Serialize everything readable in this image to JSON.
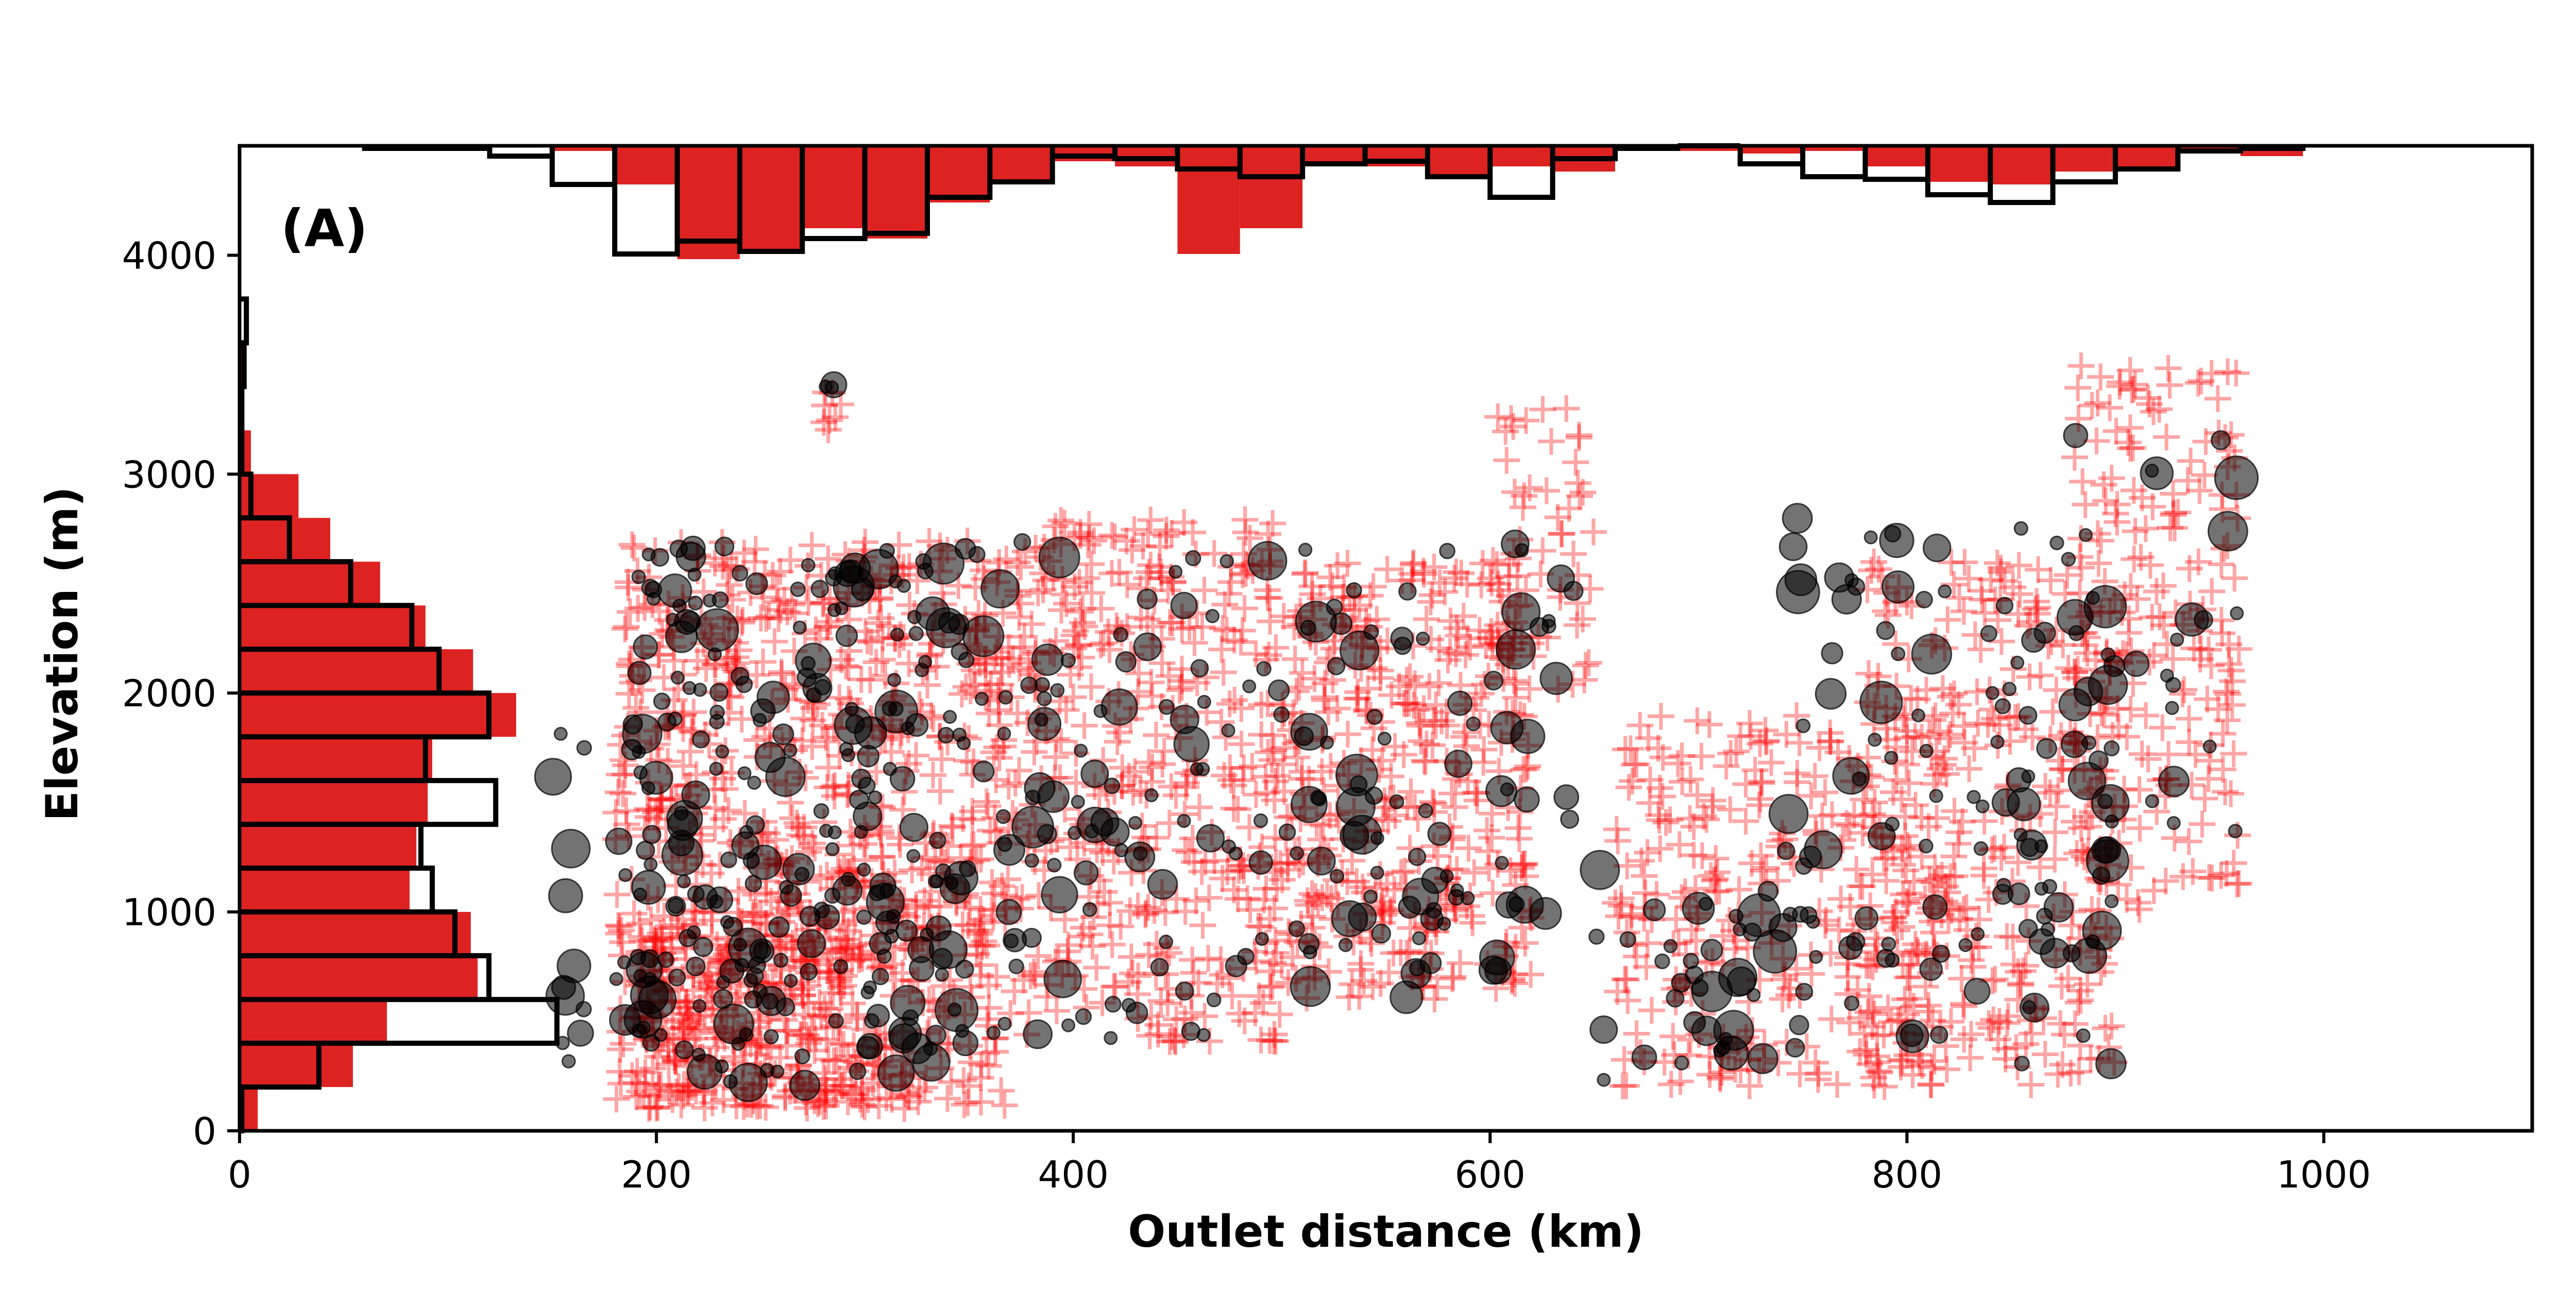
{
  "chart_data": {
    "type": "scatter",
    "panel_label": "(A)",
    "title": "",
    "xlabel": "Outlet distance (km)",
    "ylabel": "Elevation (m)",
    "xlim": [
      0,
      1100
    ],
    "ylim": [
      0,
      4500
    ],
    "x_ticks": [
      0,
      200,
      400,
      600,
      800,
      1000
    ],
    "y_ticks": [
      0,
      1000,
      2000,
      3000,
      4000
    ],
    "grid": false,
    "legend": "none",
    "colors": {
      "red_points": "#ff0000",
      "black_points": "#000000",
      "red_hist": "#dd2222",
      "black_hist_outline": "#000000"
    },
    "series": [
      {
        "marker": "plus",
        "color": "#ff0000",
        "opacity": 0.35,
        "clusters": [
          {
            "x_range": [
              180,
              370
            ],
            "y_range": [
              100,
              2700
            ],
            "count": 900
          },
          {
            "x_range": [
              190,
              300
            ],
            "y_range": [
              100,
              1000
            ],
            "count": 250
          },
          {
            "x_range": [
              370,
              500
            ],
            "y_range": [
              400,
              2800
            ],
            "count": 450
          },
          {
            "x_range": [
              500,
              620
            ],
            "y_range": [
              600,
              2600
            ],
            "count": 420
          },
          {
            "x_range": [
              600,
              650
            ],
            "y_range": [
              2000,
              3300
            ],
            "count": 60
          },
          {
            "x_range": [
              660,
              820
            ],
            "y_range": [
              200,
              1900
            ],
            "count": 330
          },
          {
            "x_range": [
              780,
              900
            ],
            "y_range": [
              200,
              2600
            ],
            "count": 330
          },
          {
            "x_range": [
              880,
              960
            ],
            "y_range": [
              1000,
              3500
            ],
            "count": 220
          },
          {
            "x_range": [
              280,
              290
            ],
            "y_range": [
              3200,
              3400
            ],
            "count": 8
          }
        ]
      },
      {
        "marker": "circle",
        "color": "#000000",
        "opacity": 0.55,
        "clusters": [
          {
            "x_range": [
              150,
              200
            ],
            "y_range": [
              300,
              1900
            ],
            "count": 25
          },
          {
            "x_range": [
              190,
              350
            ],
            "y_range": [
              200,
              2700
            ],
            "count": 260
          },
          {
            "x_range": [
              350,
              480
            ],
            "y_range": [
              400,
              2700
            ],
            "count": 90
          },
          {
            "x_range": [
              480,
              640
            ],
            "y_range": [
              600,
              2700
            ],
            "count": 100
          },
          {
            "x_range": [
              650,
              760
            ],
            "y_range": [
              200,
              1300
            ],
            "count": 45
          },
          {
            "x_range": [
              740,
              900
            ],
            "y_range": [
              300,
              2800
            ],
            "count": 110
          },
          {
            "x_range": [
              880,
              960
            ],
            "y_range": [
              1200,
              3200
            ],
            "count": 30
          },
          {
            "x_range": [
              280,
              290
            ],
            "y_range": [
              3300,
              3450
            ],
            "count": 3
          }
        ]
      }
    ],
    "top_histogram": {
      "bin_edges": [
        60,
        90,
        120,
        150,
        180,
        210,
        240,
        270,
        300,
        330,
        360,
        390,
        420,
        450,
        480,
        510,
        540,
        570,
        600,
        630,
        660,
        690,
        720,
        750,
        780,
        810,
        840,
        870,
        900,
        930,
        960,
        990
      ],
      "red_counts": [
        0,
        0,
        0,
        2,
        15,
        44,
        42,
        32,
        36,
        22,
        14,
        6,
        8,
        42,
        32,
        8,
        8,
        13,
        8,
        10,
        0,
        2,
        3,
        2,
        8,
        14,
        15,
        10,
        9,
        3,
        4
      ],
      "black_counts": [
        1,
        1,
        4,
        15,
        42,
        37,
        41,
        36,
        34,
        20,
        14,
        4,
        5,
        9,
        12,
        7,
        6,
        12,
        20,
        5,
        1,
        0,
        7,
        12,
        13,
        19,
        22,
        14,
        9,
        2,
        1
      ]
    },
    "left_histogram": {
      "bin_edges": [
        0,
        200,
        400,
        600,
        800,
        1000,
        1200,
        1400,
        1600,
        1800,
        2000,
        2200,
        2400,
        2600,
        2800,
        3000,
        3200,
        3400,
        3600,
        3800
      ],
      "red_counts": [
        8,
        50,
        65,
        105,
        102,
        75,
        78,
        83,
        85,
        122,
        103,
        82,
        62,
        40,
        26,
        5,
        2,
        1,
        0
      ],
      "black_counts": [
        1,
        35,
        140,
        110,
        95,
        85,
        80,
        113,
        82,
        110,
        88,
        76,
        49,
        22,
        5,
        1,
        1,
        2,
        3
      ]
    }
  }
}
